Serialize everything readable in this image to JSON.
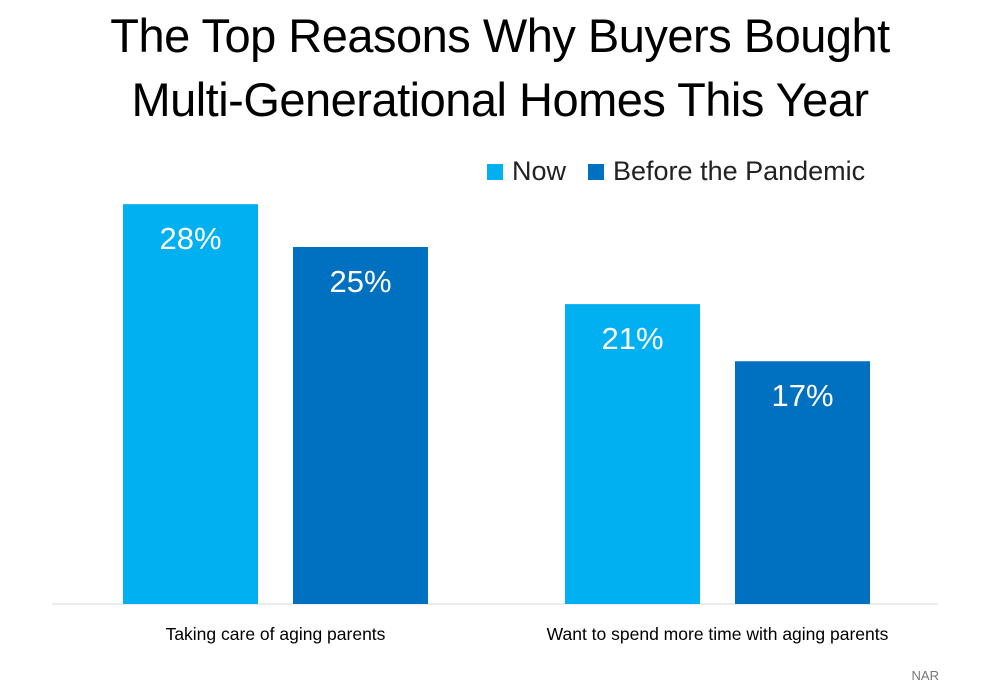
{
  "chart_data": {
    "type": "bar",
    "title_lines": [
      "The Top Reasons Why Buyers Bought",
      "Multi-Generational Homes This Year"
    ],
    "categories": [
      "Taking care of aging parents",
      "Want to spend more time with aging parents"
    ],
    "series": [
      {
        "name": "Now",
        "values": [
          28,
          21
        ],
        "labels": [
          "28%",
          "21%"
        ],
        "color": "#00b0f0"
      },
      {
        "name": "Before the Pandemic",
        "values": [
          25,
          17
        ],
        "labels": [
          "25%",
          "17%"
        ],
        "color": "#0070c0"
      }
    ],
    "xlabel": "",
    "ylabel": "",
    "ylim": [
      0,
      30
    ],
    "grid": false,
    "legend_position": "top-right",
    "source": "NAR"
  }
}
